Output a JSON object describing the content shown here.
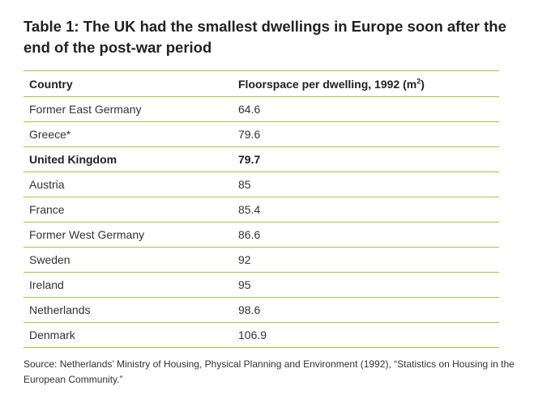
{
  "title": "Table 1: The UK had the smallest dwellings in Europe soon after the end of the post-war period",
  "table": {
    "headers": {
      "country": "Country",
      "value_prefix": "Floorspace per dwelling, 1992 (m",
      "value_sup": "2",
      "value_suffix": ")"
    },
    "rows": [
      {
        "country": "Former East Germany",
        "value": "64.6",
        "bold": false
      },
      {
        "country": "Greece*",
        "value": "79.6",
        "bold": false
      },
      {
        "country": "United Kingdom",
        "value": "79.7",
        "bold": true
      },
      {
        "country": "Austria",
        "value": "85",
        "bold": false
      },
      {
        "country": "France",
        "value": "85.4",
        "bold": false
      },
      {
        "country": "Former West Germany",
        "value": "86.6",
        "bold": false
      },
      {
        "country": "Sweden",
        "value": "92",
        "bold": false
      },
      {
        "country": "Ireland",
        "value": "95",
        "bold": false
      },
      {
        "country": "Netherlands",
        "value": "98.6",
        "bold": false
      },
      {
        "country": "Denmark",
        "value": "106.9",
        "bold": false
      }
    ]
  },
  "source": "Source: Netherlands’ Ministry of Housing, Physical Planning and Environment (1992), “Statistics on Housing in the European Community.”",
  "colors": {
    "rule": "#9ccb3b",
    "text": "#222222"
  },
  "chart_data": {
    "type": "table",
    "title": "Table 1: The UK had the smallest dwellings in Europe soon after the end of the post-war period",
    "columns": [
      "Country",
      "Floorspace per dwelling, 1992 (m2)"
    ],
    "categories": [
      "Former East Germany",
      "Greece*",
      "United Kingdom",
      "Austria",
      "France",
      "Former West Germany",
      "Sweden",
      "Ireland",
      "Netherlands",
      "Denmark"
    ],
    "values": [
      64.6,
      79.6,
      79.7,
      85,
      85.4,
      86.6,
      92,
      95,
      98.6,
      106.9
    ],
    "highlighted": "United Kingdom"
  }
}
